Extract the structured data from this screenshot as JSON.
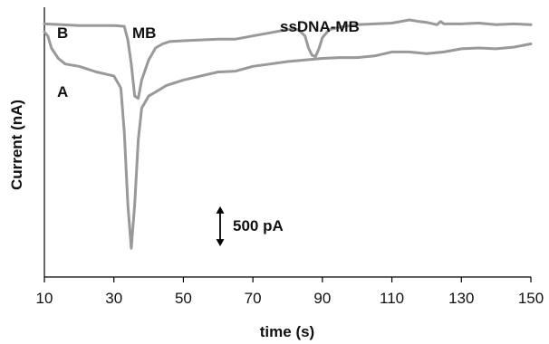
{
  "chart_data": {
    "type": "line",
    "xlabel": "time (s)",
    "ylabel": "Current (nA)",
    "xlim": [
      10,
      150
    ],
    "x_ticks": [
      "10",
      "30",
      "50",
      "70",
      "90",
      "110",
      "130",
      "150"
    ],
    "grid": false,
    "legend": "none",
    "line_color": "#999999",
    "series": [
      {
        "name": "B",
        "x": [
          10,
          15,
          20,
          25,
          30,
          33,
          34,
          35,
          36,
          37,
          38,
          40,
          42,
          44,
          46,
          50,
          55,
          60,
          65,
          70,
          75,
          80,
          83,
          85,
          86,
          87,
          88,
          89,
          90,
          92,
          95,
          100,
          105,
          110,
          115,
          118,
          120,
          123,
          124,
          125,
          130,
          135,
          140,
          145,
          150
        ],
        "y": [
          -0.05,
          -0.06,
          -0.07,
          -0.07,
          -0.07,
          -0.08,
          -0.25,
          -0.55,
          -0.95,
          -0.98,
          -0.75,
          -0.5,
          -0.35,
          -0.3,
          -0.27,
          -0.26,
          -0.25,
          -0.24,
          -0.24,
          -0.2,
          -0.16,
          -0.12,
          -0.12,
          -0.2,
          -0.35,
          -0.44,
          -0.46,
          -0.36,
          -0.22,
          -0.12,
          -0.09,
          -0.06,
          -0.05,
          -0.04,
          0.0,
          -0.02,
          -0.03,
          -0.06,
          -0.02,
          -0.05,
          -0.05,
          -0.04,
          -0.06,
          -0.05,
          -0.06
        ]
      },
      {
        "name": "A",
        "x": [
          10,
          11,
          12,
          14,
          16,
          20,
          25,
          30,
          32,
          33,
          34,
          35,
          36,
          37,
          38,
          40,
          42,
          45,
          50,
          55,
          60,
          65,
          70,
          75,
          80,
          85,
          90,
          95,
          100,
          105,
          110,
          115,
          120,
          125,
          130,
          135,
          140,
          145,
          150
        ],
        "y": [
          -0.15,
          -0.2,
          -0.35,
          -0.48,
          -0.55,
          -0.58,
          -0.65,
          -0.7,
          -0.85,
          -1.4,
          -2.3,
          -2.85,
          -2.3,
          -1.5,
          -1.1,
          -0.95,
          -0.9,
          -0.82,
          -0.75,
          -0.7,
          -0.65,
          -0.64,
          -0.58,
          -0.55,
          -0.52,
          -0.5,
          -0.48,
          -0.47,
          -0.47,
          -0.45,
          -0.4,
          -0.4,
          -0.42,
          -0.4,
          -0.36,
          -0.35,
          -0.36,
          -0.34,
          -0.3
        ]
      }
    ],
    "annotations": {
      "curve_a_label": "A",
      "curve_b_label": "B",
      "peak_mb_label": "MB",
      "peak_ssdna_label": "ssDNA-MB",
      "scale_bar_label": "500 pA",
      "scale_bar_value_nA": 0.5
    }
  }
}
